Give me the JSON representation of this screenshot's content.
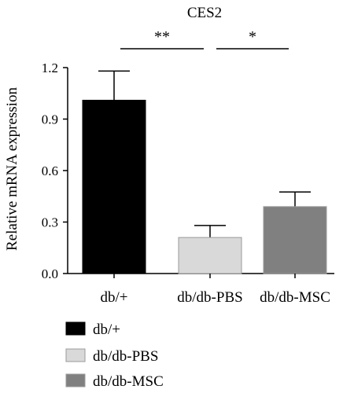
{
  "chart_data": {
    "type": "bar",
    "title": "CES2",
    "xlabel": "",
    "ylabel": "Relative mRNA expression",
    "categories": [
      "db/+",
      "db/db-PBS",
      "db/db-MSC"
    ],
    "values": [
      1.01,
      0.21,
      0.39
    ],
    "errors": [
      0.17,
      0.07,
      0.085
    ],
    "colors": [
      "#000000",
      "#d9d9d9",
      "#808080"
    ],
    "ylim": [
      0,
      1.2
    ],
    "yticks": [
      "0.0",
      "0.3",
      "0.6",
      "0.9",
      "1.2"
    ],
    "significance": [
      {
        "from": 0,
        "to": 1,
        "label": "**"
      },
      {
        "from": 1,
        "to": 2,
        "label": "*"
      }
    ],
    "legend": {
      "placement": "bottom-left",
      "entries": [
        {
          "label": "db/+",
          "color": "#000000"
        },
        {
          "label": "db/db-PBS",
          "color": "#d9d9d9"
        },
        {
          "label": "db/db-MSC",
          "color": "#808080"
        }
      ]
    },
    "grid": false
  }
}
